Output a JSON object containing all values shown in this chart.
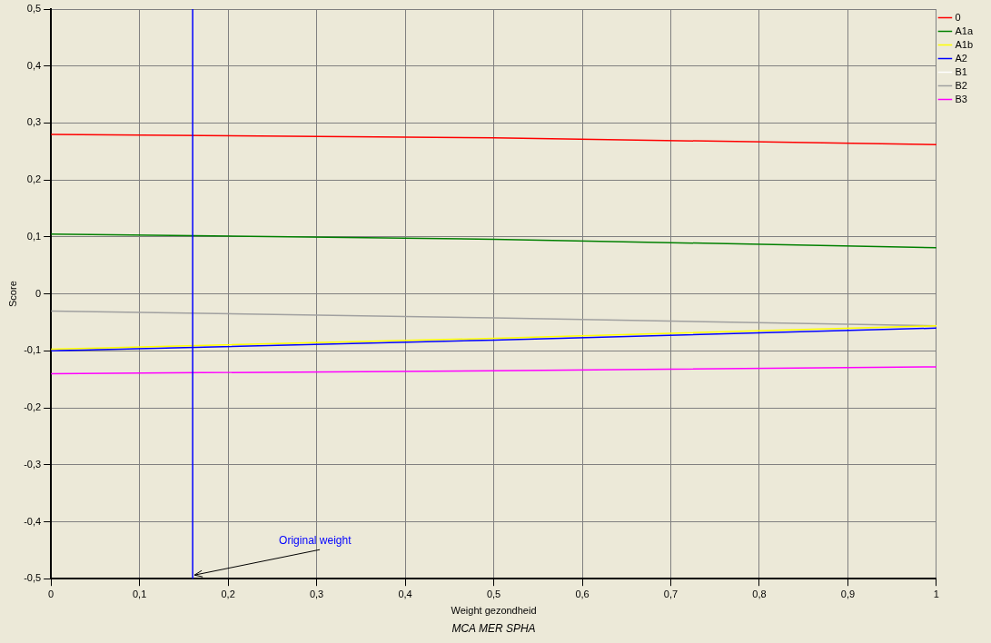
{
  "chart_data": {
    "type": "line",
    "title": "MCA MER SPHA",
    "xlabel": "Weight gezondheid",
    "ylabel": "Score",
    "x": [
      0,
      0.5,
      1
    ],
    "series": [
      {
        "name": "0",
        "color": "#ff0000",
        "values": [
          0.28,
          0.274,
          0.262
        ]
      },
      {
        "name": "A1a",
        "color": "#008000",
        "values": [
          0.105,
          0.096,
          0.081
        ]
      },
      {
        "name": "A1b",
        "color": "#ffff00",
        "values": [
          -0.097,
          -0.078,
          -0.056
        ]
      },
      {
        "name": "A2",
        "color": "#0000ff",
        "values": [
          -0.1,
          -0.081,
          -0.06
        ]
      },
      {
        "name": "B1",
        "color": "#ffffff",
        "values": [
          null,
          null,
          null
        ]
      },
      {
        "name": "B2",
        "color": "#a0a0a0",
        "values": [
          -0.03,
          -0.042,
          -0.056
        ]
      },
      {
        "name": "B3",
        "color": "#ff00ff",
        "values": [
          -0.14,
          -0.135,
          -0.128
        ]
      }
    ],
    "xlim": [
      0,
      1
    ],
    "xticks": [
      0,
      {
        "value": 0.1,
        "label": "0,1"
      },
      {
        "value": 0.2,
        "label": "0,2"
      },
      {
        "value": 0.3,
        "label": "0,3"
      },
      {
        "value": 0.4,
        "label": "0,4"
      },
      {
        "value": 0.5,
        "label": "0,5"
      },
      {
        "value": 0.6,
        "label": "0,6"
      },
      {
        "value": 0.7,
        "label": "0,7"
      },
      {
        "value": 0.8,
        "label": "0,8"
      },
      {
        "value": 0.9,
        "label": "0,9"
      },
      1
    ],
    "ylim": [
      -0.5,
      0.5
    ],
    "yticks": [
      {
        "value": -0.5,
        "label": "-0,5"
      },
      {
        "value": -0.4,
        "label": "-0,4"
      },
      {
        "value": -0.3,
        "label": "-0,3"
      },
      {
        "value": -0.2,
        "label": "-0,2"
      },
      {
        "value": -0.1,
        "label": "-0,1"
      },
      0,
      {
        "value": 0.1,
        "label": "0,1"
      },
      {
        "value": 0.2,
        "label": "0,2"
      },
      {
        "value": 0.3,
        "label": "0,3"
      },
      {
        "value": 0.4,
        "label": "0,4"
      },
      {
        "value": 0.5,
        "label": "0,5"
      }
    ],
    "ref_lines": [
      {
        "axis": "x",
        "value": 0.16,
        "color": "#0000ff"
      }
    ],
    "annotations": [
      {
        "text": "Original weight",
        "x": 0.16,
        "y": -0.5
      }
    ],
    "grid": true,
    "legend": "top right",
    "marker": "none",
    "line_style": "solid"
  }
}
